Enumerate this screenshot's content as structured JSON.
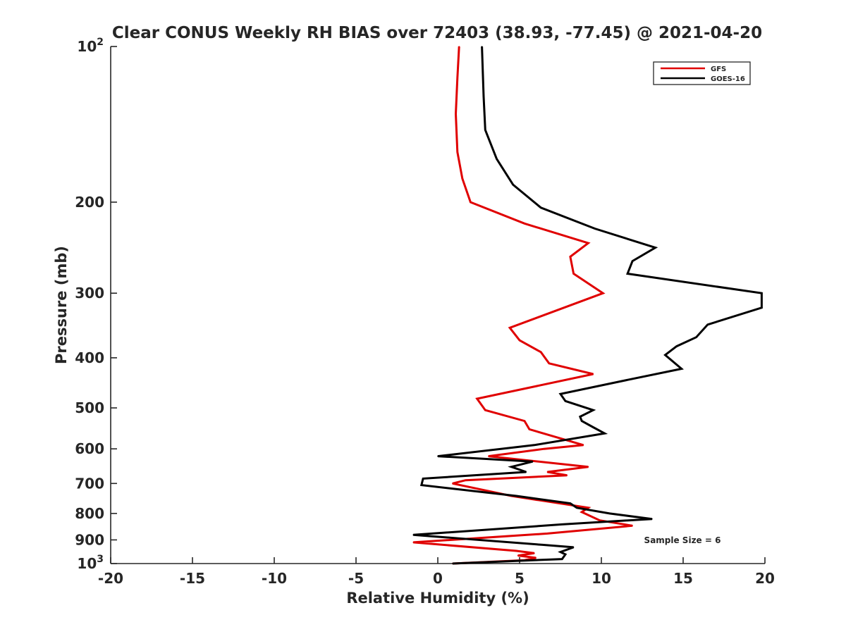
{
  "chart_data": {
    "type": "line",
    "title": "Clear CONUS Weekly RH BIAS over 72403 (38.93, -77.45) @ 2021-04-20",
    "xlabel": "Relative Humidity (%)",
    "ylabel": "Pressure (mb)",
    "xlim": [
      -20,
      20
    ],
    "ylim": [
      100,
      1000
    ],
    "y_scale": "log",
    "y_reversed": true,
    "grid": false,
    "legend_position": "top-right",
    "x_ticks": [
      -20,
      -15,
      -10,
      -5,
      0,
      5,
      10,
      15,
      20
    ],
    "y_ticks": [
      {
        "value": 100,
        "base": "10",
        "exp": "2"
      },
      {
        "value": 200,
        "label": "200"
      },
      {
        "value": 300,
        "label": "300"
      },
      {
        "value": 400,
        "label": "400"
      },
      {
        "value": 500,
        "label": "500"
      },
      {
        "value": 600,
        "label": "600"
      },
      {
        "value": 700,
        "label": "700"
      },
      {
        "value": 800,
        "label": "800"
      },
      {
        "value": 900,
        "label": "900"
      },
      {
        "value": 1000,
        "base": "10",
        "exp": "3"
      }
    ],
    "annotation": "Sample Size = 6",
    "series": [
      {
        "name": "GFS",
        "color": "#e00000",
        "points": [
          [
            1.3,
            100
          ],
          [
            1.2,
            115
          ],
          [
            1.1,
            135
          ],
          [
            1.2,
            160
          ],
          [
            1.5,
            180
          ],
          [
            2.0,
            200
          ],
          [
            5.3,
            220
          ],
          [
            9.2,
            240
          ],
          [
            8.1,
            255
          ],
          [
            8.3,
            275
          ],
          [
            10.1,
            300
          ],
          [
            4.4,
            350
          ],
          [
            5.0,
            370
          ],
          [
            6.3,
            390
          ],
          [
            6.8,
            410
          ],
          [
            9.5,
            430
          ],
          [
            2.4,
            480
          ],
          [
            2.9,
            505
          ],
          [
            5.3,
            530
          ],
          [
            5.6,
            550
          ],
          [
            8.9,
            590
          ],
          [
            6.5,
            600
          ],
          [
            3.1,
            620
          ],
          [
            9.2,
            650
          ],
          [
            6.7,
            665
          ],
          [
            7.9,
            675
          ],
          [
            1.7,
            690
          ],
          [
            0.9,
            700
          ],
          [
            4.5,
            740
          ],
          [
            9.2,
            780
          ],
          [
            8.8,
            795
          ],
          [
            9.9,
            825
          ],
          [
            11.9,
            845
          ],
          [
            6.7,
            875
          ],
          [
            -1.5,
            910
          ],
          [
            4.8,
            945
          ],
          [
            5.9,
            955
          ],
          [
            4.9,
            965
          ],
          [
            6.0,
            975
          ],
          [
            5.3,
            985
          ],
          [
            0.9,
            1000
          ]
        ]
      },
      {
        "name": "GOES-16",
        "color": "#000000",
        "points": [
          [
            2.7,
            100
          ],
          [
            2.8,
            125
          ],
          [
            2.9,
            145
          ],
          [
            3.6,
            165
          ],
          [
            4.6,
            185
          ],
          [
            6.3,
            205
          ],
          [
            9.6,
            225
          ],
          [
            13.3,
            245
          ],
          [
            11.9,
            260
          ],
          [
            11.6,
            275
          ],
          [
            19.8,
            300
          ],
          [
            19.8,
            320
          ],
          [
            16.5,
            345
          ],
          [
            15.8,
            365
          ],
          [
            14.6,
            380
          ],
          [
            13.9,
            395
          ],
          [
            14.9,
            420
          ],
          [
            11.8,
            440
          ],
          [
            7.5,
            470
          ],
          [
            7.8,
            485
          ],
          [
            9.5,
            505
          ],
          [
            8.7,
            520
          ],
          [
            8.8,
            530
          ],
          [
            9.5,
            545
          ],
          [
            10.2,
            560
          ],
          [
            5.9,
            590
          ],
          [
            0.0,
            620
          ],
          [
            5.8,
            635
          ],
          [
            4.5,
            650
          ],
          [
            5.4,
            665
          ],
          [
            -0.9,
            685
          ],
          [
            -1.0,
            705
          ],
          [
            4.8,
            740
          ],
          [
            8.1,
            765
          ],
          [
            8.5,
            780
          ],
          [
            10.5,
            800
          ],
          [
            13.1,
            820
          ],
          [
            7.6,
            840
          ],
          [
            -1.5,
            880
          ],
          [
            6.4,
            920
          ],
          [
            8.3,
            930
          ],
          [
            7.5,
            950
          ],
          [
            7.8,
            960
          ],
          [
            7.6,
            980
          ],
          [
            0.9,
            1000
          ]
        ]
      }
    ]
  }
}
